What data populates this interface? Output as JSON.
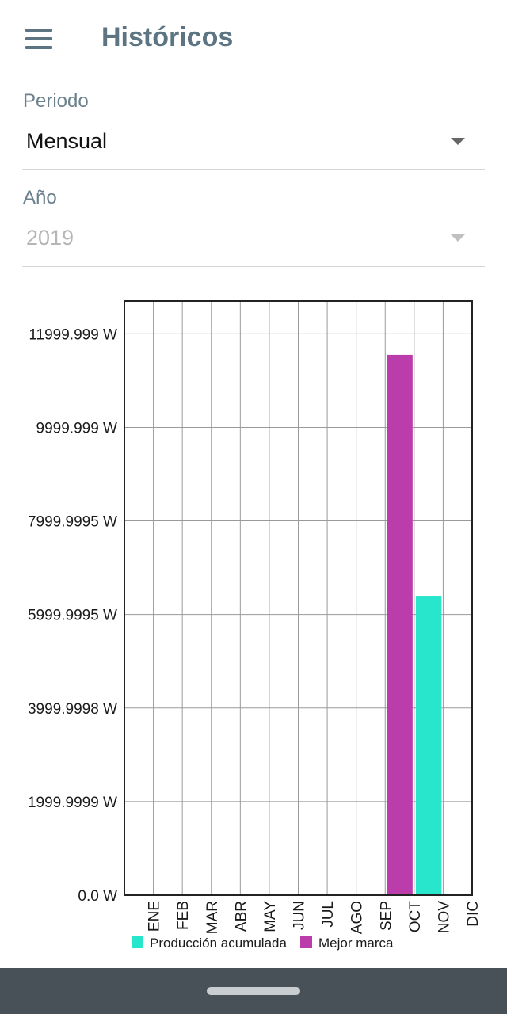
{
  "header": {
    "title": "Históricos",
    "menu_icon": "hamburger-menu-icon"
  },
  "period": {
    "label": "Periodo",
    "value": "Mensual"
  },
  "year": {
    "label": "Año",
    "value": "2019"
  },
  "colors": {
    "produccion": "#28e6cc",
    "mejor_marca": "#bb3dac",
    "header_text": "#5d7582"
  },
  "chart_data": {
    "type": "bar",
    "categories": [
      "ENE",
      "FEB",
      "MAR",
      "ABR",
      "MAY",
      "JUN",
      "JUL",
      "AGO",
      "SEP",
      "OCT",
      "NOV",
      "DIC"
    ],
    "y_tick_labels": [
      "0.0 W",
      "1999.9999 W",
      "3999.9998 W",
      "5999.9995 W",
      "7999.9995 W",
      "9999.999 W",
      "11999.999 W"
    ],
    "y_tick_values": [
      0,
      1999.9999,
      3999.9998,
      5999.9995,
      7999.9995,
      9999.999,
      11999.999
    ],
    "ylim": [
      0,
      12700
    ],
    "ylabel": "",
    "xlabel": "",
    "grid": true,
    "legend_position": "bottom-center",
    "series": [
      {
        "name": "Producción acumulada",
        "color": "#28e6cc",
        "values": [
          0,
          0,
          0,
          0,
          0,
          0,
          0,
          0,
          0,
          0,
          6400,
          0
        ]
      },
      {
        "name": "Mejor marca",
        "color": "#bb3dac",
        "values": [
          0,
          0,
          0,
          0,
          0,
          0,
          0,
          0,
          0,
          11550,
          0,
          0
        ]
      }
    ]
  }
}
